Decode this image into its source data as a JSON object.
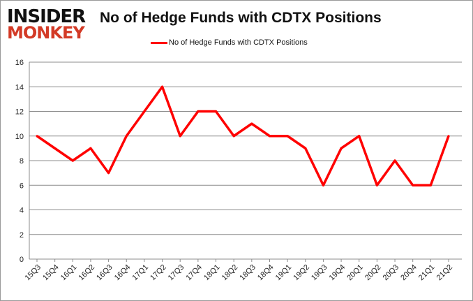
{
  "logo": {
    "line1": "INSIDER",
    "line2": "MONKEY"
  },
  "chart_data": {
    "type": "line",
    "title": "No of Hedge Funds with CDTX Positions",
    "categories": [
      "15Q3",
      "15Q4",
      "16Q1",
      "16Q2",
      "16Q3",
      "16Q4",
      "17Q1",
      "17Q2",
      "17Q3",
      "17Q4",
      "18Q1",
      "18Q2",
      "18Q3",
      "18Q4",
      "19Q1",
      "19Q2",
      "19Q3",
      "19Q4",
      "20Q1",
      "20Q2",
      "20Q3",
      "20Q4",
      "21Q1",
      "21Q2"
    ],
    "series": [
      {
        "name": "No of Hedge Funds with CDTX Positions",
        "values": [
          10,
          9,
          8,
          9,
          7,
          10,
          12,
          14,
          10,
          12,
          12,
          10,
          11,
          10,
          10,
          9,
          6,
          9,
          10,
          6,
          8,
          6,
          6,
          10
        ],
        "color": "#ff0000"
      }
    ],
    "ylim": [
      0,
      16
    ],
    "yticks": [
      0,
      2,
      4,
      6,
      8,
      10,
      12,
      14,
      16
    ],
    "grid": true,
    "legend": "top-center",
    "xlabel": "",
    "ylabel": ""
  }
}
